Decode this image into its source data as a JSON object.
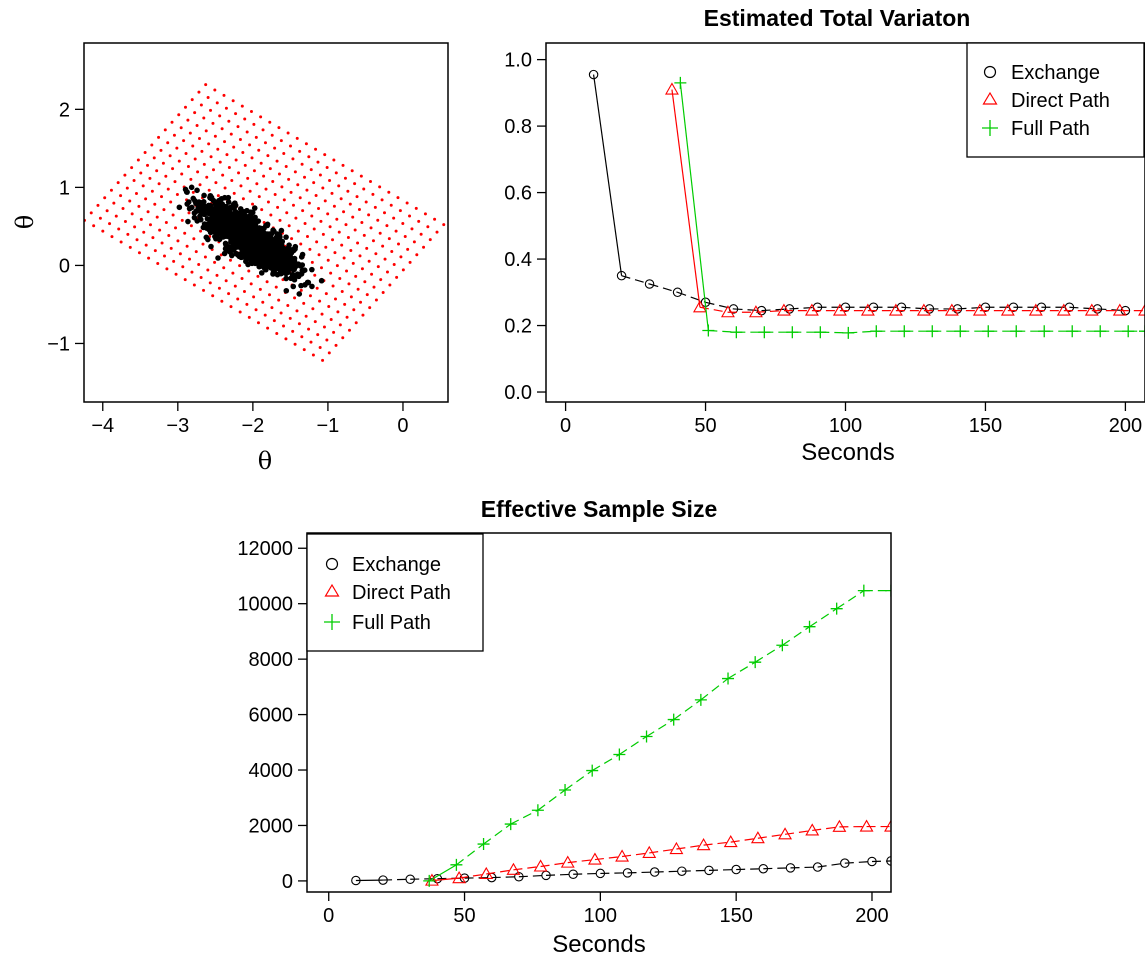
{
  "chart_data": [
    {
      "type": "scatter",
      "title": "",
      "xlabel": "θ",
      "ylabel": "θ",
      "xlim": [
        -4.25,
        0.6
      ],
      "ylim": [
        -1.75,
        2.85
      ],
      "xticks": [
        -4,
        -3,
        -2,
        -1,
        0
      ],
      "yticks": [
        -1,
        0,
        1,
        2
      ],
      "xtick_labels": [
        "−4",
        "−3",
        "−2",
        "−1",
        "0"
      ],
      "ytick_labels": [
        "−1",
        "0",
        "1",
        "2"
      ],
      "colors": {
        "grid_points": "#ff0000",
        "samples": "#000000"
      },
      "series": [
        {
          "marker": "grid-dot",
          "grid": {
            "center": [
              -1.85,
              0.55
            ],
            "dir_a": [
              0.122,
              -0.069
            ],
            "dir_b": [
              0.0897,
              0.0967
            ],
            "range_a": [
              -13,
              13
            ],
            "range_b": [
              -9,
              9
            ],
            "step": 1
          }
        },
        {
          "marker": "sample-cloud",
          "cloud": {
            "center": [
              -2.05,
              0.35
            ],
            "major_axis": [
              0.83,
              -0.56
            ],
            "sd_major": 0.35,
            "sd_minor": 0.11,
            "n": 1400,
            "xrange": [
              -3.0,
              -0.5
            ],
            "yrange": [
              -0.45,
              1.1
            ]
          }
        }
      ]
    },
    {
      "type": "line",
      "title": "Estimated Total Variaton",
      "xlabel": "Seconds",
      "ylabel": "",
      "xlim": [
        -7,
        207
      ],
      "ylim": [
        -0.03,
        1.05
      ],
      "xticks": [
        0,
        50,
        100,
        150,
        200
      ],
      "yticks": [
        0.0,
        0.2,
        0.4,
        0.6,
        0.8,
        1.0
      ],
      "xtick_labels": [
        "0",
        "50",
        "100",
        "150",
        "200"
      ],
      "ytick_labels": [
        "0.0",
        "0.2",
        "0.4",
        "0.6",
        "0.8",
        "1.0"
      ],
      "legend_position": "top-right",
      "series": [
        {
          "name": "Exchange",
          "marker": "circle",
          "color": "#000000",
          "x": [
            10,
            20,
            30,
            40,
            50,
            60,
            70,
            80,
            90,
            100,
            110,
            120,
            130,
            140,
            150,
            160,
            170,
            180,
            190,
            200
          ],
          "y": [
            0.955,
            0.35,
            0.325,
            0.3,
            0.27,
            0.25,
            0.245,
            0.25,
            0.255,
            0.255,
            0.255,
            0.255,
            0.25,
            0.25,
            0.255,
            0.255,
            0.255,
            0.255,
            0.25,
            0.245
          ]
        },
        {
          "name": "Direct Path",
          "marker": "triangle",
          "color": "#ff0000",
          "x": [
            38,
            48,
            58,
            68,
            78,
            88,
            98,
            108,
            118,
            128,
            138,
            148,
            158,
            168,
            178,
            188,
            198,
            207
          ],
          "y": [
            0.91,
            0.255,
            0.24,
            0.24,
            0.245,
            0.245,
            0.245,
            0.245,
            0.245,
            0.245,
            0.245,
            0.245,
            0.245,
            0.245,
            0.245,
            0.245,
            0.245,
            0.245
          ]
        },
        {
          "name": "Full Path",
          "marker": "plus",
          "color": "#00cc00",
          "x": [
            41,
            51,
            61,
            71,
            81,
            91,
            101,
            111,
            121,
            131,
            141,
            151,
            161,
            171,
            181,
            191,
            201,
            207
          ],
          "y": [
            0.93,
            0.185,
            0.18,
            0.18,
            0.18,
            0.18,
            0.178,
            0.183,
            0.183,
            0.183,
            0.183,
            0.183,
            0.183,
            0.183,
            0.183,
            0.183,
            0.183,
            0.183
          ]
        }
      ]
    },
    {
      "type": "line",
      "title": "Effective Sample Size",
      "xlabel": "Seconds",
      "ylabel": "",
      "xlim": [
        -8,
        207
      ],
      "ylim": [
        -400,
        12550
      ],
      "xticks": [
        0,
        50,
        100,
        150,
        200
      ],
      "yticks": [
        0,
        2000,
        4000,
        6000,
        8000,
        10000,
        12000
      ],
      "xtick_labels": [
        "0",
        "50",
        "100",
        "150",
        "200"
      ],
      "ytick_labels": [
        "0",
        "2000",
        "4000",
        "6000",
        "8000",
        "10000",
        "12000"
      ],
      "legend_position": "top-left",
      "series": [
        {
          "name": "Exchange",
          "marker": "circle",
          "color": "#000000",
          "x": [
            10,
            20,
            30,
            40,
            50,
            60,
            70,
            80,
            90,
            100,
            110,
            120,
            130,
            140,
            150,
            160,
            170,
            180,
            190,
            200,
            207
          ],
          "y": [
            15,
            30,
            60,
            80,
            100,
            120,
            150,
            200,
            240,
            270,
            290,
            320,
            350,
            380,
            410,
            440,
            470,
            500,
            640,
            700,
            720
          ]
        },
        {
          "name": "Direct Path",
          "marker": "triangle",
          "color": "#ff0000",
          "x": [
            38,
            48,
            58,
            68,
            78,
            88,
            98,
            108,
            118,
            128,
            138,
            148,
            158,
            168,
            178,
            188,
            198,
            207
          ],
          "y": [
            10,
            100,
            250,
            400,
            520,
            660,
            770,
            880,
            1010,
            1150,
            1290,
            1400,
            1540,
            1680,
            1820,
            1950,
            1960,
            1960
          ]
        },
        {
          "name": "Full Path",
          "marker": "plus",
          "color": "#00cc00",
          "x": [
            37,
            47,
            57,
            67,
            77,
            87,
            97,
            107,
            117,
            127,
            137,
            147,
            157,
            167,
            177,
            187,
            197,
            207
          ],
          "y": [
            0,
            580,
            1330,
            2050,
            2550,
            3280,
            3980,
            4560,
            5210,
            5820,
            6530,
            7300,
            7890,
            8500,
            9170,
            9820,
            10470,
            10470
          ]
        }
      ]
    }
  ]
}
